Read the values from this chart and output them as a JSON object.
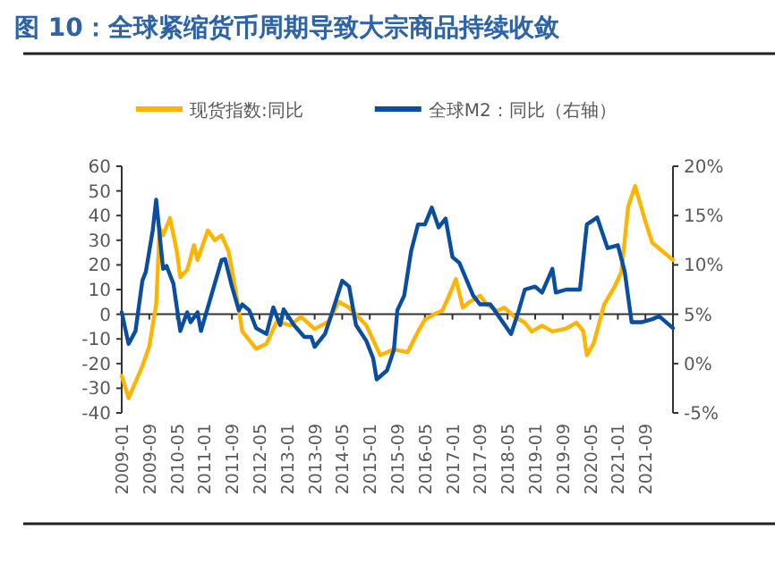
{
  "chart_data": {
    "type": "line",
    "title": "图 10：全球紧缩货币周期导致大宗商品持续收敛",
    "x": [
      "2009-01",
      "2009-03",
      "2009-05",
      "2009-07",
      "2009-09",
      "2009-11",
      "2009-12",
      "2010-01",
      "2010-03",
      "2010-05",
      "2010-06",
      "2010-08",
      "2010-10",
      "2010-11",
      "2011-02",
      "2011-04",
      "2011-06",
      "2011-08",
      "2011-10",
      "2011-12",
      "2012-04",
      "2012-07",
      "2012-10",
      "2013-02",
      "2013-05",
      "2013-09",
      "2014-01",
      "2014-04",
      "2014-07",
      "2014-12",
      "2015-04",
      "2015-08",
      "2015-12",
      "2016-03",
      "2016-05",
      "2016-08",
      "2016-10",
      "2016-12",
      "2017-02",
      "2017-04",
      "2017-06",
      "2017-09",
      "2017-11",
      "2018-02",
      "2018-04",
      "2018-07",
      "2018-10",
      "2018-12",
      "2019-03",
      "2019-06",
      "2019-10",
      "2020-01",
      "2020-03",
      "2020-04",
      "2020-06",
      "2020-09",
      "2020-12",
      "2021-02",
      "2021-04",
      "2021-06",
      "2021-09",
      "2021-11",
      "2022-02",
      "2022-05"
    ],
    "series": [
      {
        "name": "现货指数:同比",
        "color": "#ffb400",
        "values": [
          -25,
          -34,
          -27.5,
          -21,
          -13,
          4,
          35,
          32,
          39,
          25.5,
          15,
          18,
          28,
          22,
          34,
          30,
          32,
          25.5,
          10,
          -7,
          -14,
          -12,
          -3,
          -4.5,
          -1,
          -6,
          -3,
          5,
          2.7,
          -4.5,
          -16.6,
          -14.2,
          -15.4,
          -7,
          -2.2,
          0.2,
          1.4,
          7.5,
          14.2,
          2.7,
          5,
          7.5,
          3.9,
          1.4,
          2.7,
          -1,
          -3.4,
          -7,
          -4.6,
          -7,
          -5.8,
          -3.4,
          -7,
          -16.6,
          -11.8,
          3.9,
          11,
          17,
          43.6,
          52,
          37.6,
          29,
          25.5,
          22
        ]
      },
      {
        "name": "全球M2：同比（右轴）",
        "color": "#0a4ea2",
        "axis": "y2",
        "x": [
          "2009-01",
          "2009-03",
          "2009-05",
          "2009-07",
          "2009-08",
          "2009-10",
          "2009-11",
          "2010-01",
          "2010-02",
          "2010-04",
          "2010-06",
          "2010-08",
          "2010-09",
          "2010-11",
          "2010-12",
          "2011-03",
          "2011-06",
          "2011-07",
          "2011-09",
          "2011-11",
          "2011-12",
          "2012-02",
          "2012-04",
          "2012-07",
          "2012-09",
          "2012-11",
          "2012-12",
          "2013-03",
          "2013-06",
          "2013-08",
          "2013-09",
          "2013-12",
          "2014-02",
          "2014-05",
          "2014-07",
          "2014-09",
          "2014-12",
          "2015-02",
          "2015-03",
          "2015-06",
          "2015-08",
          "2015-09",
          "2015-11",
          "2016-01",
          "2016-03",
          "2016-05",
          "2016-07",
          "2016-09",
          "2016-11",
          "2017-01",
          "2017-03",
          "2017-07",
          "2017-09",
          "2017-12",
          "2018-03",
          "2018-06",
          "2018-08",
          "2018-10",
          "2019-01",
          "2019-03",
          "2019-06",
          "2019-07",
          "2019-10",
          "2020-02",
          "2020-04",
          "2020-07",
          "2020-10",
          "2021-01",
          "2021-03",
          "2021-05",
          "2021-08",
          "2021-11",
          "2022-01",
          "2022-05"
        ],
        "values": [
          5.2,
          2.0,
          3.3,
          8.4,
          9.3,
          13.5,
          16.6,
          9.6,
          9.9,
          8.1,
          3.3,
          5.2,
          4.2,
          5.2,
          3.3,
          6.9,
          10.5,
          10.6,
          7.8,
          5.4,
          6,
          5.4,
          3.6,
          3,
          5.7,
          3.9,
          5.5,
          3.9,
          2.7,
          2.7,
          1.7,
          3,
          5.1,
          8.4,
          7.8,
          3.9,
          2.3,
          0.5,
          -1.6,
          -0.7,
          1.4,
          5.4,
          6.9,
          11.4,
          14.1,
          14.1,
          15.8,
          13.8,
          14.7,
          10.8,
          10.2,
          6.9,
          6,
          6,
          4.5,
          3,
          5.1,
          7.5,
          7.8,
          7.2,
          9.6,
          7.2,
          7.5,
          7.5,
          14.1,
          14.8,
          11.7,
          12,
          9.3,
          4.2,
          4.2,
          4.5,
          4.8,
          3.6
        ]
      }
    ],
    "xlim": [
      "2009-01",
      "2022-05"
    ],
    "xticks": [
      {
        "value": "2009-01",
        "label": "2009-01"
      },
      {
        "value": "2009-09",
        "label": "2009-09"
      },
      {
        "value": "2010-05",
        "label": "2010-05"
      },
      {
        "value": "2011-01",
        "label": "2011-01"
      },
      {
        "value": "2011-09",
        "label": "2011-09"
      },
      {
        "value": "2012-05",
        "label": "2012-05"
      },
      {
        "value": "2013-01",
        "label": "2013-01"
      },
      {
        "value": "2013-09",
        "label": "2013-09"
      },
      {
        "value": "2014-05",
        "label": "2014-05"
      },
      {
        "value": "2015-01",
        "label": "2015-01"
      },
      {
        "value": "2015-09",
        "label": "2015-09"
      },
      {
        "value": "2016-05",
        "label": "2016-05"
      },
      {
        "value": "2017-01",
        "label": "2017-01"
      },
      {
        "value": "2017-09",
        "label": "2017-09"
      },
      {
        "value": "2018-05",
        "label": "2018-05"
      },
      {
        "value": "2019-01",
        "label": "2019-01"
      },
      {
        "value": "2019-09",
        "label": "2019-09"
      },
      {
        "value": "2020-05",
        "label": "2020-05"
      },
      {
        "value": "2021-01",
        "label": "2021-01"
      },
      {
        "value": "2021-09",
        "label": "2021-09"
      }
    ],
    "ylim": [
      -40,
      60
    ],
    "yticks": [
      -40,
      -30,
      -20,
      -10,
      0,
      10,
      20,
      30,
      40,
      50,
      60
    ],
    "y2lim": [
      -5,
      20
    ],
    "y2ticks": [
      {
        "value": -5,
        "label": "-5%"
      },
      {
        "value": 0,
        "label": "0%"
      },
      {
        "value": 5,
        "label": "5%"
      },
      {
        "value": 10,
        "label": "10%"
      },
      {
        "value": 15,
        "label": "15%"
      },
      {
        "value": 20,
        "label": "20%"
      }
    ],
    "legend": "top",
    "marker": "none",
    "line_style": "solid"
  }
}
